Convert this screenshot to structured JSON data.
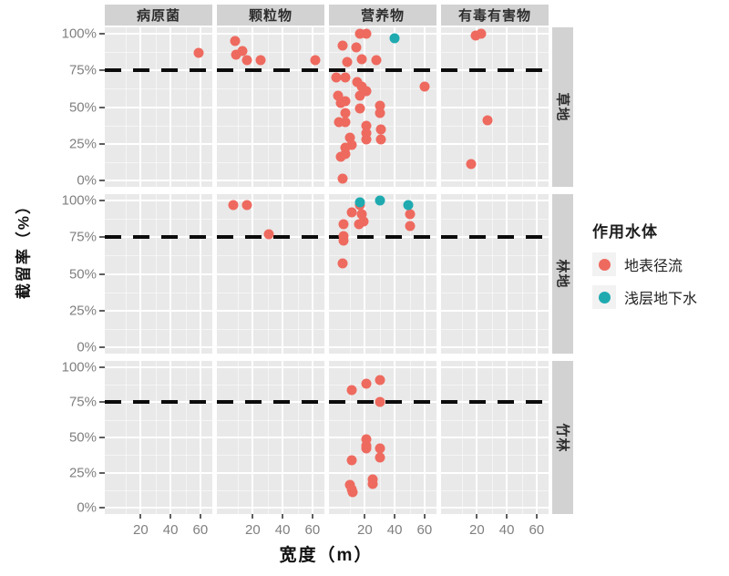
{
  "chart_data": {
    "type": "scatter",
    "title": "",
    "xlabel": "宽度（m）",
    "ylabel": "截留率（%）",
    "x_ticks": [
      20,
      40,
      60
    ],
    "y_ticks": [
      0,
      25,
      50,
      75,
      100
    ],
    "y_tick_suffix": "%",
    "xlim": [
      -4,
      68
    ],
    "ylim": [
      -4.5,
      104.5
    ],
    "grid": "on",
    "reference_line_y": 75,
    "col_facets": [
      "病原菌",
      "颗粒物",
      "营养物",
      "有毒有害物"
    ],
    "row_facets": [
      "草地",
      "林地",
      "竹林"
    ],
    "colors": {
      "panel_bg": "#e9e9e9",
      "strip_bg": "#d2d2d2",
      "gridline": "#ffffff",
      "reference_line": "#0b0b0b",
      "tick_text": "#7f7f7f",
      "surface_runoff": "#ee6a5f",
      "shallow_groundwater": "#1faab0"
    },
    "legend": {
      "title": "作用水体",
      "position": "right",
      "items": [
        {
          "label": "地表径流",
          "color": "#ee6a5f"
        },
        {
          "label": "浅层地下水",
          "color": "#1faab0"
        }
      ]
    },
    "point_format": "[width_m, interception_pct, series_index(0=地表径流,1=浅层地下水)]",
    "cells": [
      {
        "row": "草地",
        "col": "病原菌",
        "points": [
          [
            59,
            87,
            0
          ]
        ]
      },
      {
        "row": "草地",
        "col": "颗粒物",
        "points": [
          [
            8,
            95,
            0
          ],
          [
            9,
            86,
            0
          ],
          [
            13,
            88,
            0
          ],
          [
            16,
            82,
            0
          ],
          [
            25,
            82,
            0
          ],
          [
            62,
            82,
            0
          ]
        ]
      },
      {
        "row": "草地",
        "col": "营养物",
        "points": [
          [
            17,
            100,
            0
          ],
          [
            21,
            100,
            0
          ],
          [
            5,
            92,
            0
          ],
          [
            14,
            91,
            0
          ],
          [
            18,
            83,
            0
          ],
          [
            8,
            81,
            0
          ],
          [
            28,
            82,
            0
          ],
          [
            1,
            70,
            0
          ],
          [
            7,
            70,
            0
          ],
          [
            15,
            67,
            0
          ],
          [
            18,
            64,
            0
          ],
          [
            21,
            61,
            0
          ],
          [
            2,
            58,
            0
          ],
          [
            7,
            54,
            0
          ],
          [
            60,
            64,
            0
          ],
          [
            4,
            53,
            0
          ],
          [
            17,
            58,
            0
          ],
          [
            17,
            49,
            0
          ],
          [
            7,
            46,
            0
          ],
          [
            30,
            51,
            0
          ],
          [
            30,
            46,
            0
          ],
          [
            3,
            40,
            0
          ],
          [
            7,
            40,
            0
          ],
          [
            21,
            37,
            0
          ],
          [
            21,
            32,
            0
          ],
          [
            31,
            35,
            0
          ],
          [
            10,
            29,
            0
          ],
          [
            21,
            28,
            0
          ],
          [
            31,
            28,
            0
          ],
          [
            11,
            24,
            0
          ],
          [
            7,
            22,
            0
          ],
          [
            7,
            18,
            0
          ],
          [
            4,
            16,
            0
          ],
          [
            5,
            1,
            0
          ],
          [
            40,
            97,
            1
          ]
        ]
      },
      {
        "row": "草地",
        "col": "有毒有害物",
        "points": [
          [
            19,
            99,
            0
          ],
          [
            23,
            100,
            0
          ],
          [
            27,
            41,
            0
          ],
          [
            16,
            11,
            0
          ]
        ]
      },
      {
        "row": "林地",
        "col": "病原菌",
        "points": []
      },
      {
        "row": "林地",
        "col": "颗粒物",
        "points": [
          [
            7,
            97,
            0
          ],
          [
            16,
            97,
            0
          ],
          [
            31,
            77,
            0
          ]
        ]
      },
      {
        "row": "林地",
        "col": "营养物",
        "points": [
          [
            17,
            97,
            0
          ],
          [
            11,
            92,
            0
          ],
          [
            18,
            91,
            0
          ],
          [
            19,
            86,
            0
          ],
          [
            16,
            84,
            0
          ],
          [
            6,
            84,
            0
          ],
          [
            6,
            76,
            0
          ],
          [
            6,
            73,
            0
          ],
          [
            5,
            57,
            0
          ],
          [
            50,
            91,
            0
          ],
          [
            50,
            83,
            0
          ],
          [
            30,
            100,
            1
          ],
          [
            17,
            99,
            1
          ],
          [
            49,
            97,
            1
          ]
        ]
      },
      {
        "row": "林地",
        "col": "有毒有害物",
        "points": []
      },
      {
        "row": "竹林",
        "col": "病原菌",
        "points": []
      },
      {
        "row": "竹林",
        "col": "颗粒物",
        "points": []
      },
      {
        "row": "竹林",
        "col": "营养物",
        "points": [
          [
            30,
            91,
            0
          ],
          [
            21,
            88,
            0
          ],
          [
            11,
            84,
            0
          ],
          [
            30,
            75,
            0
          ],
          [
            21,
            49,
            0
          ],
          [
            21,
            44,
            0
          ],
          [
            21,
            42,
            0
          ],
          [
            30,
            42,
            0
          ],
          [
            30,
            36,
            0
          ],
          [
            11,
            34,
            0
          ],
          [
            25,
            20,
            0
          ],
          [
            25,
            17,
            0
          ],
          [
            10,
            16,
            0
          ],
          [
            11,
            13,
            0
          ],
          [
            12,
            11,
            0
          ]
        ]
      },
      {
        "row": "竹林",
        "col": "有毒有害物",
        "points": []
      }
    ]
  }
}
